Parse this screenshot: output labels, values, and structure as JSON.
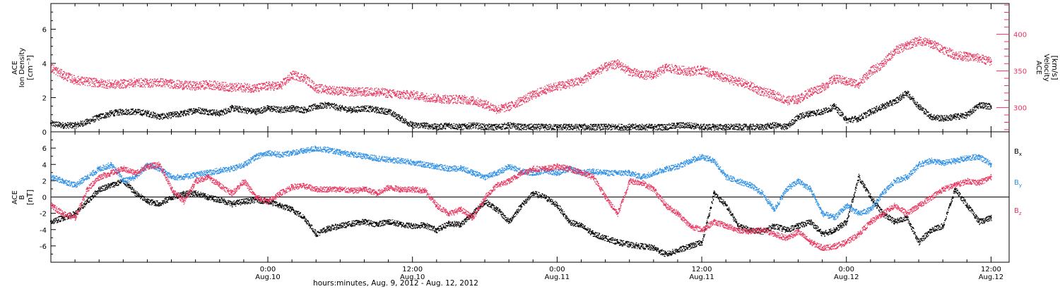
{
  "figure": {
    "xaxis_title": "hours:minutes, Aug.  9, 2012 - Aug. 12, 2012",
    "x_ticks": [
      {
        "hours": 18,
        "top": "0:00",
        "bottom": "Aug.10"
      },
      {
        "hours": 30,
        "top": "12:00",
        "bottom": "Aug.10"
      },
      {
        "hours": 42,
        "top": "0:00",
        "bottom": "Aug.11"
      },
      {
        "hours": 54,
        "top": "12:00",
        "bottom": "Aug.11"
      },
      {
        "hours": 66,
        "top": "0:00",
        "bottom": "Aug.12"
      },
      {
        "hours": 78,
        "top": "12:00",
        "bottom": "Aug.12"
      }
    ]
  },
  "chart_data": [
    {
      "type": "scatter",
      "panel": "top",
      "x_unit": "hours after 2012-08-09 06:00",
      "xlim": [
        0,
        79.5
      ],
      "left_axis": {
        "label_line1": "ACE",
        "label_line2": "Ion Density",
        "label_units": "[cm⁻³]",
        "ylim": [
          0,
          7.5
        ],
        "ticks": [
          0,
          2,
          4,
          6
        ]
      },
      "right_axis": {
        "label_line1": "ACE",
        "label_line2": "Velocity",
        "label_units": "[km/s]",
        "ylim": [
          267,
          442
        ],
        "ticks": [
          300,
          350,
          400
        ],
        "color": "#e8335d"
      },
      "series": [
        {
          "name": "Ion Density",
          "axis": "left",
          "color": "#000000",
          "x": [
            0,
            1,
            2,
            3,
            4,
            5,
            6,
            7,
            8,
            9,
            10,
            11,
            12,
            13,
            14,
            15,
            16,
            17,
            18,
            19,
            20,
            21,
            22,
            23,
            24,
            25,
            26,
            27,
            28,
            29,
            30,
            31,
            32,
            33,
            34,
            35,
            36,
            37,
            38,
            39,
            40,
            41,
            42,
            43,
            44,
            45,
            46,
            47,
            48,
            49,
            50,
            51,
            52,
            53,
            54,
            55,
            56,
            57,
            58,
            59,
            60,
            61,
            62,
            63,
            64,
            65,
            66,
            67,
            68,
            69,
            70,
            71,
            72,
            73,
            74,
            75,
            76,
            77,
            78
          ],
          "y": [
            0.5,
            0.4,
            0.4,
            0.6,
            0.9,
            1.1,
            1.2,
            1.2,
            1.1,
            0.9,
            1.0,
            1.1,
            1.3,
            1.2,
            1.1,
            1.4,
            1.3,
            1.2,
            1.4,
            1.3,
            1.4,
            1.3,
            1.5,
            1.6,
            1.4,
            1.3,
            1.4,
            1.3,
            1.2,
            0.8,
            0.4,
            0.4,
            0.3,
            0.4,
            0.3,
            0.4,
            0.3,
            0.3,
            0.4,
            0.3,
            0.3,
            0.3,
            0.3,
            0.3,
            0.3,
            0.3,
            0.3,
            0.3,
            0.3,
            0.3,
            0.3,
            0.3,
            0.4,
            0.4,
            0.3,
            0.3,
            0.3,
            0.3,
            0.3,
            0.3,
            0.4,
            0.3,
            0.9,
            1.1,
            1.2,
            1.5,
            0.7,
            0.8,
            1.2,
            1.5,
            1.8,
            2.3,
            1.5,
            0.9,
            0.8,
            0.9,
            1.0,
            1.6,
            1.5
          ]
        },
        {
          "name": "Velocity",
          "axis": "right",
          "color": "#e8335d",
          "x": [
            0,
            1,
            2,
            3,
            4,
            5,
            6,
            7,
            8,
            9,
            10,
            11,
            12,
            13,
            14,
            15,
            16,
            17,
            18,
            19,
            20,
            21,
            22,
            23,
            24,
            25,
            26,
            27,
            28,
            29,
            30,
            31,
            32,
            33,
            34,
            35,
            36,
            37,
            38,
            39,
            40,
            41,
            42,
            43,
            44,
            45,
            46,
            47,
            48,
            49,
            50,
            51,
            52,
            53,
            54,
            55,
            56,
            57,
            58,
            59,
            60,
            61,
            62,
            63,
            64,
            65,
            66,
            67,
            68,
            69,
            70,
            71,
            72,
            73,
            74,
            75,
            76,
            77,
            78
          ],
          "y": [
            355,
            345,
            338,
            336,
            334,
            332,
            333,
            335,
            334,
            335,
            333,
            331,
            330,
            332,
            330,
            328,
            328,
            327,
            330,
            330,
            345,
            341,
            327,
            325,
            323,
            322,
            322,
            322,
            320,
            318,
            318,
            315,
            313,
            312,
            312,
            310,
            305,
            298,
            302,
            310,
            318,
            325,
            330,
            333,
            337,
            348,
            356,
            360,
            350,
            345,
            345,
            355,
            352,
            350,
            352,
            345,
            340,
            336,
            330,
            322,
            318,
            310,
            312,
            322,
            328,
            340,
            336,
            333,
            350,
            360,
            378,
            385,
            392,
            388,
            380,
            372,
            370,
            368,
            363
          ]
        }
      ]
    },
    {
      "type": "scatter",
      "panel": "bottom",
      "x_unit": "hours after 2012-08-09 06:00",
      "xlim": [
        0,
        79.5
      ],
      "y_axis": {
        "label_line1": "ACE",
        "label_line2": "B",
        "label_units": "[nT]",
        "ylim": [
          -8,
          8
        ],
        "ticks": [
          -6,
          -4,
          -2,
          0,
          2,
          4,
          6
        ],
        "zero_line": true
      },
      "legend_position": "right",
      "legend": [
        {
          "base": "B",
          "sub": "x",
          "color": "#000000"
        },
        {
          "base": "B",
          "sub": "y",
          "color": "#2b8ee6"
        },
        {
          "base": "B",
          "sub": "z",
          "color": "#e8335d"
        }
      ],
      "series": [
        {
          "name": "Bx",
          "color": "#000000",
          "x": [
            0,
            1,
            2,
            3,
            4,
            5,
            6,
            7,
            8,
            9,
            10,
            11,
            12,
            13,
            14,
            15,
            16,
            17,
            18,
            19,
            20,
            21,
            22,
            23,
            24,
            25,
            26,
            27,
            28,
            29,
            30,
            31,
            32,
            33,
            34,
            35,
            36,
            37,
            38,
            39,
            40,
            41,
            42,
            43,
            44,
            45,
            46,
            47,
            48,
            49,
            50,
            51,
            52,
            53,
            54,
            55,
            56,
            57,
            58,
            59,
            60,
            61,
            62,
            63,
            64,
            65,
            66,
            67,
            68,
            69,
            70,
            71,
            72,
            73,
            74,
            75,
            76,
            77,
            78
          ],
          "y": [
            -3,
            -2.5,
            -2,
            -0.5,
            1,
            1.5,
            2,
            0.5,
            -0.5,
            -0.8,
            0,
            0.5,
            0.5,
            0,
            -0.3,
            -0.8,
            -0.5,
            -0.3,
            -0.5,
            -1,
            -1.5,
            -2.5,
            -4.5,
            -3.8,
            -3.5,
            -3.2,
            -3,
            -3.3,
            -3,
            -3.3,
            -3.5,
            -3.4,
            -4,
            -3.2,
            -3.3,
            -2,
            -0.5,
            -1.5,
            -3,
            -1,
            0.5,
            0,
            -1,
            -3,
            -3.5,
            -4.5,
            -5,
            -5.5,
            -5.8,
            -6,
            -6.2,
            -7,
            -6.5,
            -6,
            -5.5,
            0.5,
            -1,
            -3.5,
            -4,
            -4.2,
            -3.5,
            -4,
            -3.5,
            -3,
            -4.5,
            -4,
            -3,
            2.5,
            0,
            -2,
            -3,
            -2.5,
            -5.5,
            -4,
            -3.5,
            1,
            -1,
            -3,
            -2.5
          ]
        },
        {
          "name": "By",
          "color": "#2b8ee6",
          "x": [
            0,
            1,
            2,
            3,
            4,
            5,
            6,
            7,
            8,
            9,
            10,
            11,
            12,
            13,
            14,
            15,
            16,
            17,
            18,
            19,
            20,
            21,
            22,
            23,
            24,
            25,
            26,
            27,
            28,
            29,
            30,
            31,
            32,
            33,
            34,
            35,
            36,
            37,
            38,
            39,
            40,
            41,
            42,
            43,
            44,
            45,
            46,
            47,
            48,
            49,
            50,
            51,
            52,
            53,
            54,
            55,
            56,
            57,
            58,
            59,
            60,
            61,
            62,
            63,
            64,
            65,
            66,
            67,
            68,
            69,
            70,
            71,
            72,
            73,
            74,
            75,
            76,
            77,
            78
          ],
          "y": [
            2.5,
            2,
            1.5,
            2.5,
            3.5,
            4,
            2,
            2.5,
            4,
            3.5,
            2.5,
            2.5,
            2.8,
            3,
            3.3,
            3.5,
            4,
            5,
            5.5,
            5.2,
            5.5,
            5.7,
            6,
            5.8,
            5.5,
            5.3,
            5,
            4.8,
            4.6,
            4.5,
            4.3,
            4,
            3.8,
            3.5,
            3.6,
            3,
            2.5,
            3,
            3.8,
            3.2,
            3,
            3.3,
            3,
            3.5,
            3,
            3.2,
            3,
            3,
            3,
            2.5,
            3,
            3.5,
            3.8,
            4.5,
            5,
            4.5,
            2.5,
            2,
            1.5,
            0.5,
            -1.5,
            1,
            2,
            1,
            -2,
            -2.5,
            -1,
            -2,
            -1.5,
            0.5,
            2,
            2.5,
            4,
            4.5,
            4.2,
            4.5,
            4.8,
            5,
            4
          ]
        },
        {
          "name": "Bz",
          "color": "#e8335d",
          "x": [
            0,
            1,
            2,
            3,
            4,
            5,
            6,
            7,
            8,
            9,
            10,
            11,
            12,
            13,
            14,
            15,
            16,
            17,
            18,
            19,
            20,
            21,
            22,
            23,
            24,
            25,
            26,
            27,
            28,
            29,
            30,
            31,
            32,
            33,
            34,
            35,
            36,
            37,
            38,
            39,
            40,
            41,
            42,
            43,
            44,
            45,
            46,
            47,
            48,
            49,
            50,
            51,
            52,
            53,
            54,
            55,
            56,
            57,
            58,
            59,
            60,
            61,
            62,
            63,
            64,
            65,
            66,
            67,
            68,
            69,
            70,
            71,
            72,
            73,
            74,
            75,
            76,
            77,
            78
          ],
          "y": [
            -1,
            -2,
            -2.5,
            1,
            2.5,
            3,
            3.5,
            3,
            3.8,
            4,
            1,
            -0.5,
            2,
            2.5,
            1.5,
            0.5,
            2,
            0,
            -0.5,
            0.5,
            1.3,
            1.4,
            1,
            1,
            1,
            0.8,
            1,
            0.5,
            1.2,
            1,
            1,
            0.8,
            -1,
            -2,
            -1.5,
            -2.5,
            0,
            1.5,
            2,
            3,
            3.5,
            3.5,
            3.8,
            3.5,
            3,
            2.5,
            0,
            -2,
            2,
            1.8,
            1,
            -1,
            -2,
            -3.5,
            -4,
            -3,
            -3.5,
            -4,
            -4.2,
            -4,
            -4.5,
            -5,
            -4.2,
            -5.5,
            -6.2,
            -6,
            -5.5,
            -4.5,
            -3,
            -2,
            -1,
            -2,
            -1,
            0,
            1,
            1.5,
            2,
            1.8,
            2.5
          ]
        }
      ]
    }
  ]
}
